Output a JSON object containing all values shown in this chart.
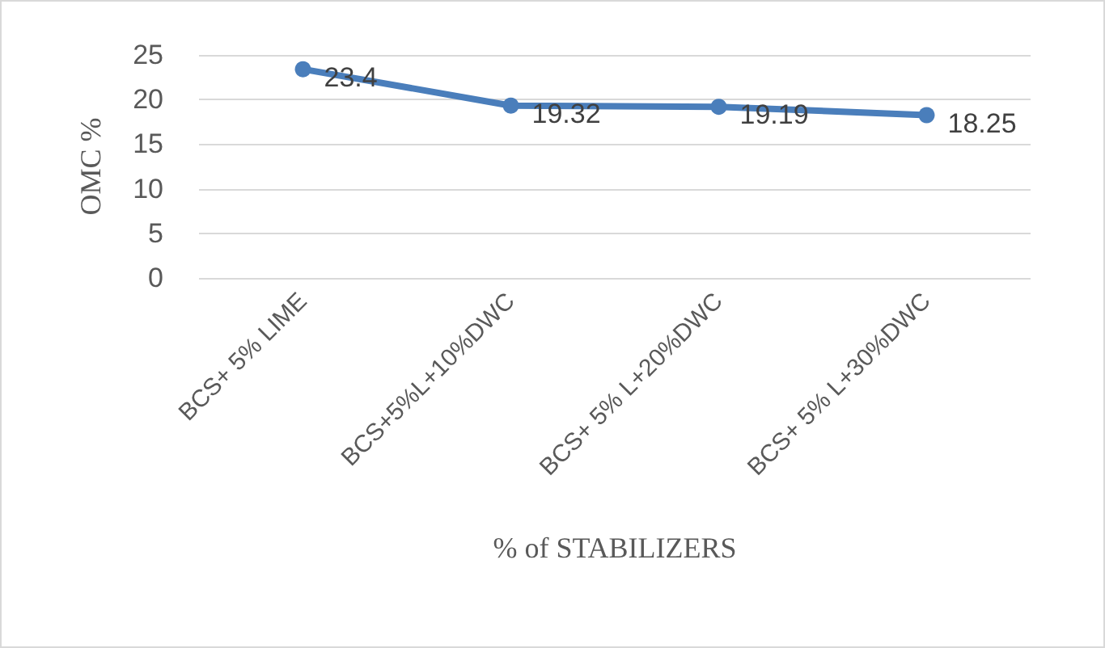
{
  "chart_data": {
    "type": "line",
    "xlabel": "% of STABILIZERS",
    "ylabel": "OMC %",
    "categories": [
      "BCS+ 5% LIME",
      "BCS+5%L+10%DWC",
      "BCS+ 5% L+20%DWC",
      "BCS+ 5% L+30%DWC"
    ],
    "series": [
      {
        "color": "#4a7ebb",
        "values": [
          23.4,
          19.32,
          19.19,
          18.25
        ]
      }
    ],
    "ylim": [
      0,
      25
    ],
    "yticks": [
      0,
      5,
      10,
      15,
      20,
      25
    ],
    "grid": "y",
    "marker": "circle",
    "line_style": "solid",
    "data_labels": true
  }
}
